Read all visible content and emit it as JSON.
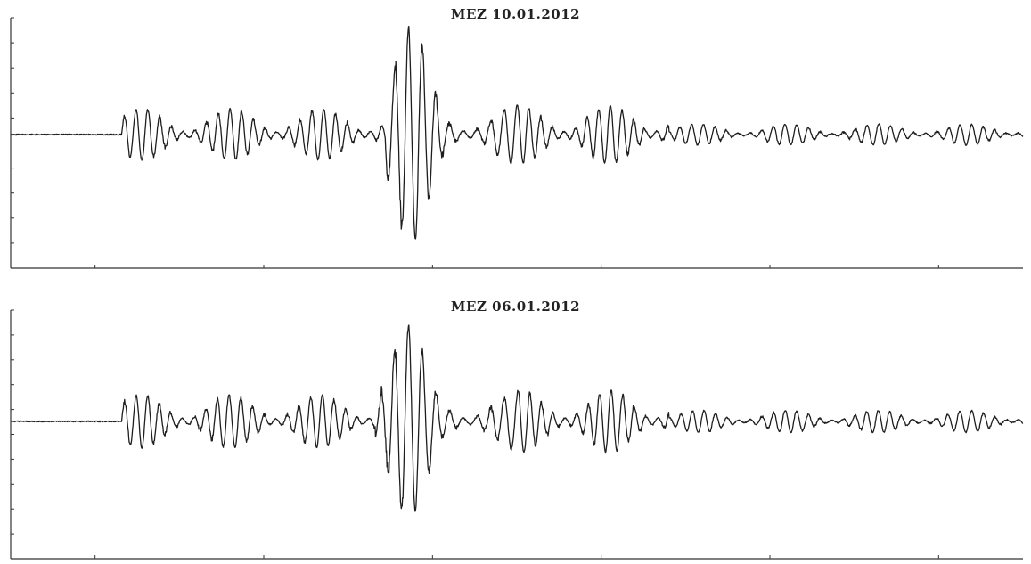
{
  "chart_data": [
    {
      "type": "line",
      "title": "MEZ 10.01.2012",
      "xlabel": "",
      "ylabel": "",
      "grid": false,
      "legend": "none",
      "x_ticks": 6,
      "y_ticks": 11,
      "series": [
        {
          "color": "#1e1e1e",
          "signal": {
            "quiet_until": 0.11,
            "noise_level": 0.01,
            "segments": [
              {
                "start": 0.11,
                "end": 0.37,
                "amplitude": 0.22,
                "period": 0.0115
              },
              {
                "start": 0.37,
                "end": 0.5,
                "amplitude": 0.95,
                "period": 0.0135,
                "peak_at": 0.392
              },
              {
                "start": 0.5,
                "end": 0.65,
                "amplitude": 0.25,
                "period": 0.0115
              },
              {
                "start": 0.65,
                "end": 1.0,
                "amplitude": 0.09,
                "period": 0.0115
              }
            ]
          }
        }
      ]
    },
    {
      "type": "line",
      "title": "MEZ 06.01.2012",
      "xlabel": "",
      "ylabel": "",
      "grid": false,
      "legend": "none",
      "x_ticks": 6,
      "y_ticks": 11,
      "series": [
        {
          "color": "#1e1e1e",
          "signal": {
            "quiet_until": 0.11,
            "noise_level": 0.01,
            "segments": [
              {
                "start": 0.11,
                "end": 0.36,
                "amplitude": 0.24,
                "period": 0.0115
              },
              {
                "start": 0.36,
                "end": 0.5,
                "amplitude": 0.95,
                "period": 0.0135,
                "peak_at": 0.385
              },
              {
                "start": 0.5,
                "end": 0.65,
                "amplitude": 0.28,
                "period": 0.0115
              },
              {
                "start": 0.65,
                "end": 1.0,
                "amplitude": 0.1,
                "period": 0.0115
              }
            ]
          }
        }
      ]
    }
  ]
}
